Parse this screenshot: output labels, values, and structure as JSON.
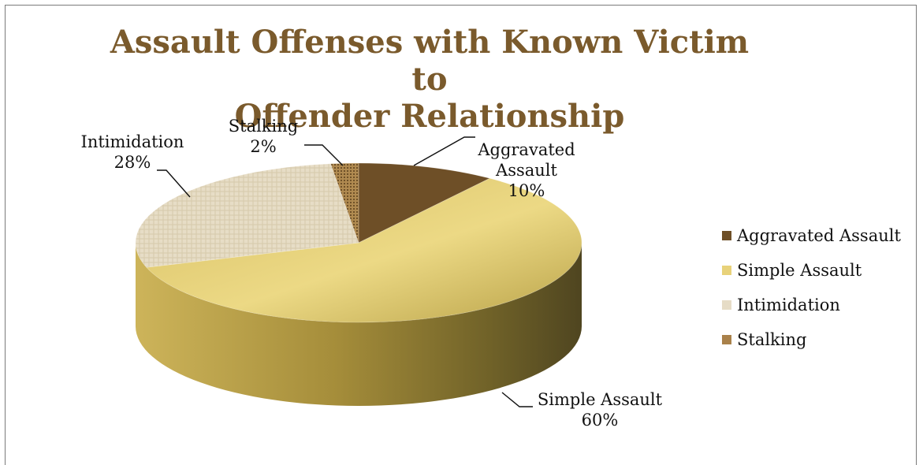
{
  "chart_data": {
    "type": "pie",
    "title_lines": [
      "Assault Offenses with Known Victim to",
      "Offender Relationship"
    ],
    "slices": [
      {
        "name": "Aggravated Assault",
        "value": 10,
        "label_lines": [
          "Aggravated",
          "Assault",
          "10%"
        ],
        "color": "#6e4f27",
        "legend_label": "Aggravated Assault"
      },
      {
        "name": "Simple Assault",
        "value": 60,
        "label_lines": [
          "Simple Assault",
          "60%"
        ],
        "color": "#e8d27a",
        "legend_label": "Simple Assault"
      },
      {
        "name": "Intimidation",
        "value": 28,
        "label_lines": [
          "Intimidation",
          "28%"
        ],
        "color": "#e6dcc6",
        "legend_label": "Intimidation"
      },
      {
        "name": "Stalking",
        "value": 2,
        "label_lines": [
          "Stalking",
          "2%"
        ],
        "color": "#a9814a",
        "legend_label": "Stalking"
      }
    ],
    "legend_position": "right",
    "style": "3d-pie"
  }
}
